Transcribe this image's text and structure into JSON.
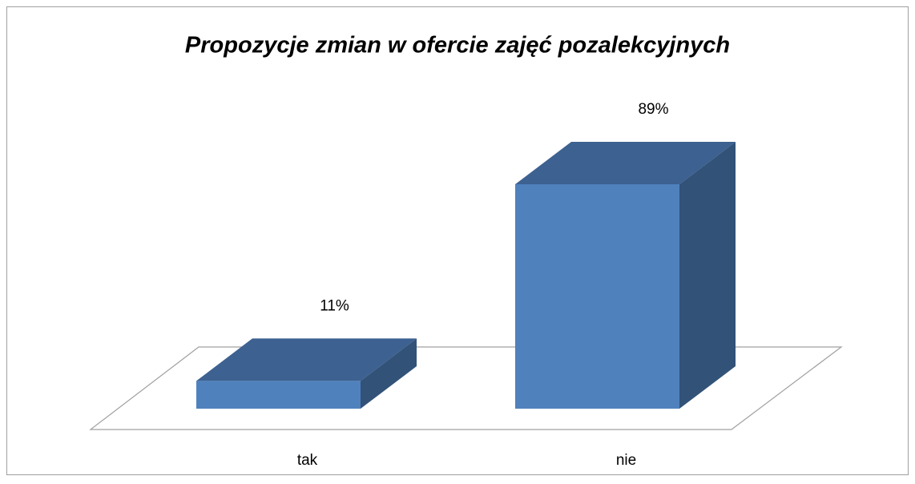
{
  "chart_data": {
    "type": "bar3d",
    "title": "Propozycje zmian w ofercie zajęć pozalekcyjnych",
    "categories": [
      "tak",
      "nie"
    ],
    "values": [
      11,
      89
    ],
    "value_labels": [
      "11%",
      "89%"
    ],
    "colors": {
      "front": "#4f81bd",
      "top": "#3d6190",
      "side": "#325278"
    }
  }
}
